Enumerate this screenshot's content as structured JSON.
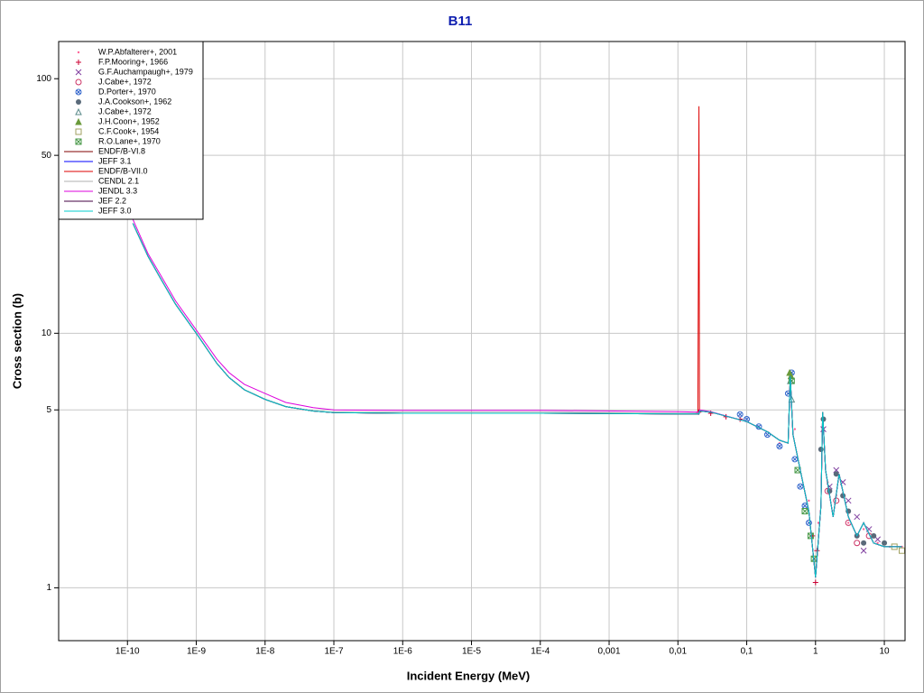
{
  "chart_data": {
    "type": "line",
    "title": "B11",
    "x_label": "Incident Energy (MeV)",
    "y_label": "Cross section (b)",
    "log_x": true,
    "log_y": true,
    "grid": true,
    "legend": "upper left",
    "xlim": [
      1e-11,
      20
    ],
    "ylim": [
      0.62,
      140
    ],
    "xticks": [
      {
        "value": 1e-10,
        "label": "1E-10"
      },
      {
        "value": 1e-09,
        "label": "1E-9"
      },
      {
        "value": 1e-08,
        "label": "1E-8"
      },
      {
        "value": 1e-07,
        "label": "1E-7"
      },
      {
        "value": 1e-06,
        "label": "1E-6"
      },
      {
        "value": 1e-05,
        "label": "1E-5"
      },
      {
        "value": 0.0001,
        "label": "1E-4"
      },
      {
        "value": 0.001,
        "label": "0,001"
      },
      {
        "value": 0.01,
        "label": "0,01"
      },
      {
        "value": 0.1,
        "label": "0,1"
      },
      1,
      10
    ],
    "yticks": [
      1,
      5,
      10,
      50,
      100
    ],
    "x": [
      1.2e-10,
      2e-10,
      3e-10,
      5e-10,
      1e-09,
      2e-09,
      3e-09,
      5e-09,
      1e-08,
      2e-08,
      5e-08,
      1e-07,
      1e-06,
      0.0001,
      0.01,
      0.0195,
      0.0202,
      0.0206,
      0.03,
      0.1,
      0.2,
      0.3,
      0.4,
      0.43,
      0.47,
      0.6,
      0.8,
      1.0,
      1.2,
      1.27,
      1.4,
      1.8,
      2.2,
      3,
      4,
      5,
      7,
      10,
      18
    ],
    "series": [
      {
        "name": "W.P.Abfalterer+, 2001",
        "type": "scatter",
        "marker": "dot",
        "color": "#ff6699",
        "x": [
          0.3,
          0.5,
          0.8,
          1.1,
          1.5,
          2,
          3,
          5,
          8,
          12,
          18
        ],
        "values": [
          3.7,
          4.2,
          2.2,
          1.8,
          2.6,
          2.3,
          1.8,
          1.7,
          1.5,
          1.45,
          1.45
        ]
      },
      {
        "name": "F.P.Mooring+, 1966",
        "type": "scatter",
        "marker": "plus",
        "color": "#cc0033",
        "x": [
          0.02,
          0.03,
          0.05,
          0.08,
          0.9,
          1.0,
          1.05
        ],
        "values": [
          4.9,
          4.85,
          4.7,
          4.6,
          1.6,
          1.05,
          1.4
        ]
      },
      {
        "name": "G.F.Auchampaugh+, 1979",
        "type": "scatter",
        "marker": "cross",
        "color": "#8040a0",
        "x": [
          1.3,
          1.6,
          2,
          2.5,
          3,
          4,
          5,
          6,
          8
        ],
        "values": [
          4.2,
          2.5,
          2.9,
          2.6,
          2.2,
          1.9,
          1.4,
          1.7,
          1.55
        ]
      },
      {
        "name": "J.Cabe+, 1972",
        "type": "scatter",
        "marker": "circle",
        "color": "#cc3366",
        "x": [
          1.5,
          2,
          3,
          4,
          6
        ],
        "values": [
          2.4,
          2.2,
          1.8,
          1.5,
          1.6
        ]
      },
      {
        "name": "D.Porter+, 1970",
        "type": "scatter",
        "marker": "circle-cross",
        "color": "#3366cc",
        "x": [
          0.08,
          0.1,
          0.15,
          0.2,
          0.3,
          0.4,
          0.45,
          0.5,
          0.6,
          0.7,
          0.8
        ],
        "values": [
          4.8,
          4.6,
          4.3,
          4.0,
          3.6,
          5.8,
          7,
          3.2,
          2.5,
          2.1,
          1.8
        ]
      },
      {
        "name": "J.A.Cookson+, 1962",
        "type": "scatter",
        "marker": "disc",
        "color": "#5a6a7a",
        "x": [
          1.2,
          1.3,
          1.6,
          2,
          2.5,
          3,
          4,
          5,
          7,
          10
        ],
        "values": [
          3.5,
          4.6,
          2.4,
          2.8,
          2.3,
          2.0,
          1.6,
          1.5,
          1.6,
          1.5
        ]
      },
      {
        "name": "J.Cabe+, 1972",
        "type": "scatter",
        "marker": "triangle",
        "color": "#5a8a8a",
        "x": [
          0.43,
          0.45
        ],
        "values": [
          6.5,
          5.5
        ]
      },
      {
        "name": "J.H.Coon+, 1952",
        "type": "scatter",
        "marker": "filled-triangle",
        "color": "#6a9a3a",
        "x": [
          0.42,
          0.44
        ],
        "values": [
          7.0,
          6.8
        ]
      },
      {
        "name": "C.F.Cook+, 1954",
        "type": "scatter",
        "marker": "square",
        "color": "#a0a060",
        "x": [
          14,
          18
        ],
        "values": [
          1.45,
          1.4
        ]
      },
      {
        "name": "R.O.Lane+, 1970",
        "type": "scatter",
        "marker": "square-cross",
        "color": "#4a9a4a",
        "x": [
          0.45,
          0.55,
          0.7,
          0.85,
          0.95
        ],
        "values": [
          6.5,
          2.9,
          2.0,
          1.6,
          1.3
        ]
      },
      {
        "name": "ENDF/B-VI.8",
        "type": "line",
        "color": "#800000",
        "values": [
          27,
          20,
          16.5,
          13,
          10,
          7.6,
          6.7,
          6.0,
          5.5,
          5.15,
          4.95,
          4.88,
          4.85,
          4.85,
          4.82,
          4.82,
          4.82,
          4.95,
          4.9,
          4.5,
          4.1,
          3.8,
          3.7,
          6.8,
          4.0,
          2.9,
          2.0,
          1.1,
          2.1,
          4.9,
          2.9,
          1.9,
          2.8,
          1.9,
          1.6,
          1.8,
          1.5,
          1.45,
          1.45
        ]
      },
      {
        "name": "JEFF 3.1",
        "type": "line",
        "color": "#0000ff",
        "values": [
          27,
          20,
          16.5,
          13,
          10,
          7.6,
          6.7,
          6.0,
          5.5,
          5.15,
          4.95,
          4.88,
          4.85,
          4.85,
          4.82,
          4.82,
          4.82,
          4.95,
          4.9,
          4.5,
          4.1,
          3.8,
          3.7,
          6.8,
          4.0,
          2.9,
          2.0,
          1.1,
          2.1,
          4.9,
          2.9,
          1.9,
          2.8,
          1.9,
          1.6,
          1.8,
          1.5,
          1.45,
          1.45
        ]
      },
      {
        "name": "ENDF/B-VII.0",
        "type": "line",
        "color": "#dd0000",
        "values": [
          27,
          20,
          16.5,
          13,
          10,
          7.6,
          6.7,
          6.0,
          5.5,
          5.15,
          4.95,
          4.88,
          4.85,
          4.85,
          4.82,
          4.82,
          78,
          4.95,
          4.9,
          4.5,
          4.1,
          3.8,
          3.7,
          6.8,
          4.0,
          2.9,
          2.0,
          1.1,
          2.1,
          4.9,
          2.9,
          1.9,
          2.8,
          1.9,
          1.6,
          1.8,
          1.5,
          1.45,
          1.45
        ]
      },
      {
        "name": "CENDL 2.1",
        "type": "line",
        "color": "#b0b0b0",
        "values": [
          27,
          20,
          16.5,
          13,
          10,
          7.6,
          6.7,
          6.0,
          5.5,
          5.15,
          4.95,
          4.9,
          4.9,
          4.9,
          4.85,
          4.85,
          4.85,
          4.95,
          4.9,
          4.5,
          4.1,
          3.8,
          3.7,
          6.8,
          4.0,
          2.9,
          2.0,
          1.1,
          2.1,
          4.9,
          2.9,
          1.9,
          2.8,
          1.9,
          1.6,
          1.8,
          1.5,
          1.45,
          1.45
        ]
      },
      {
        "name": "JENDL 3.3",
        "type": "line",
        "color": "#dd00dd",
        "values": [
          28,
          20.5,
          17,
          13.4,
          10.3,
          7.9,
          7.0,
          6.3,
          5.8,
          5.35,
          5.1,
          5.0,
          4.98,
          4.98,
          4.92,
          4.9,
          4.9,
          5.0,
          4.92,
          4.5,
          4.1,
          3.8,
          3.7,
          6.7,
          4.0,
          2.9,
          2.0,
          1.1,
          2.1,
          4.8,
          2.9,
          1.9,
          2.8,
          1.9,
          1.6,
          1.8,
          1.5,
          1.45,
          1.45
        ]
      },
      {
        "name": "JEF 2.2",
        "type": "line",
        "color": "#400040",
        "values": [
          27,
          20,
          16.5,
          13,
          10,
          7.6,
          6.7,
          6.0,
          5.5,
          5.15,
          4.95,
          4.88,
          4.85,
          4.85,
          4.82,
          4.82,
          4.82,
          4.95,
          4.9,
          4.5,
          4.1,
          3.8,
          3.7,
          6.8,
          4.0,
          2.9,
          2.0,
          1.1,
          2.1,
          4.9,
          2.9,
          1.9,
          2.8,
          1.9,
          1.6,
          1.8,
          1.5,
          1.45,
          1.45
        ]
      },
      {
        "name": "JEFF 3.0",
        "type": "line",
        "color": "#00cccc",
        "values": [
          27,
          20,
          16.5,
          13,
          10,
          7.6,
          6.7,
          6.0,
          5.5,
          5.15,
          4.95,
          4.88,
          4.85,
          4.85,
          4.82,
          4.82,
          4.82,
          4.95,
          4.9,
          4.5,
          4.1,
          3.8,
          3.7,
          6.8,
          4.0,
          2.9,
          2.0,
          1.1,
          2.1,
          4.9,
          2.9,
          1.9,
          2.8,
          1.9,
          1.6,
          1.8,
          1.5,
          1.45,
          1.45
        ]
      }
    ]
  }
}
